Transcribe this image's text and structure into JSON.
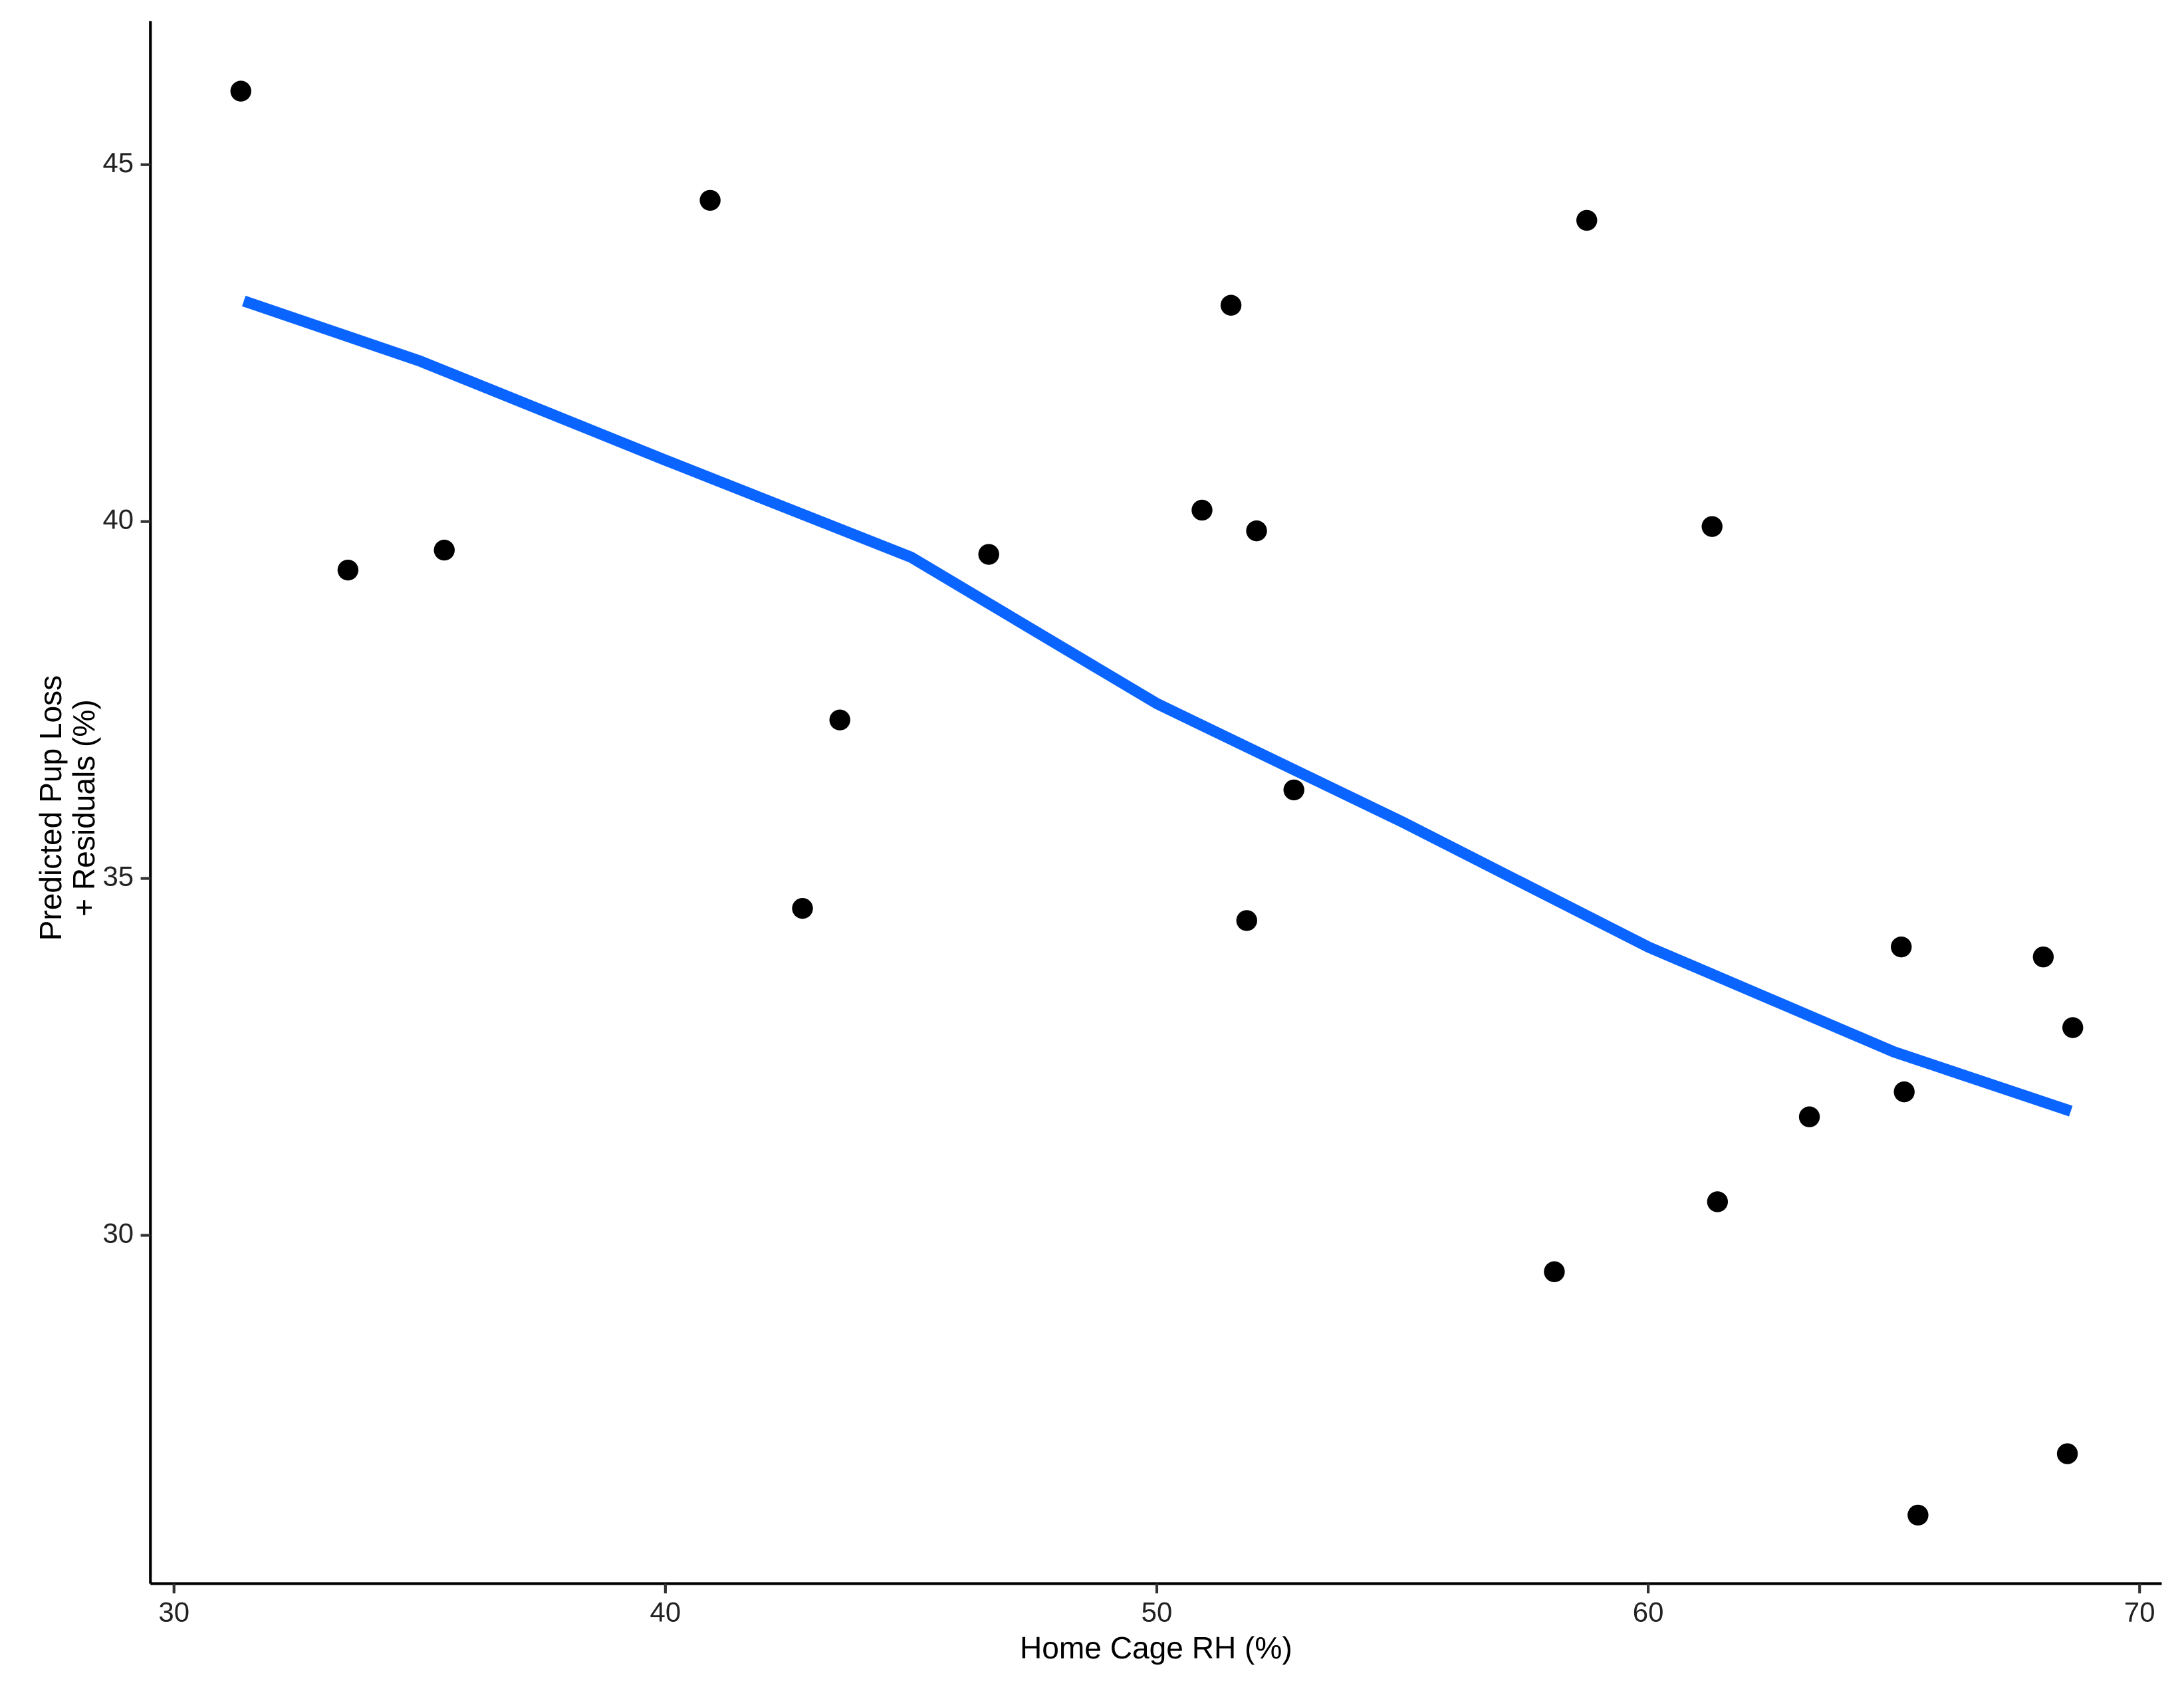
{
  "chart_data": {
    "type": "scatter",
    "xlabel": "Home Cage RH (%)",
    "ylabel": [
      "Predicted Pup Loss",
      "+ Residuals (%)"
    ],
    "xlim": [
      29.52,
      70.45
    ],
    "ylim": [
      25.12,
      47.01
    ],
    "xticks": [
      30,
      40,
      50,
      60,
      70
    ],
    "yticks": [
      30,
      35,
      40,
      45
    ],
    "points": {
      "color": "#000000",
      "x": [
        31.36,
        33.54,
        35.5,
        40.91,
        42.79,
        43.55,
        46.58,
        50.92,
        51.51,
        52.03,
        51.83,
        52.79,
        58.09,
        58.75,
        61.3,
        61.41,
        63.28,
        65.15,
        65.21,
        65.49,
        68.04,
        68.64,
        68.53
      ],
      "y": [
        46.03,
        39.32,
        39.6,
        44.5,
        34.58,
        37.22,
        39.54,
        40.16,
        43.03,
        39.87,
        34.41,
        36.24,
        29.49,
        44.22,
        39.93,
        30.47,
        31.66,
        34.04,
        32.01,
        26.08,
        33.9,
        32.91,
        26.94
      ]
    },
    "fit": {
      "color": "#0a64ff",
      "x": [
        31.42,
        35,
        40,
        45,
        50,
        55,
        60,
        65,
        68.6
      ],
      "y": [
        43.09,
        42.25,
        40.86,
        39.5,
        37.45,
        35.79,
        34.04,
        32.57,
        31.74
      ]
    }
  }
}
